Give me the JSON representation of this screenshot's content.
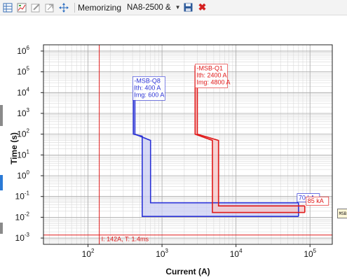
{
  "toolbar": {
    "memorizing_label": "Memorizing",
    "selected_device": "NA8-2500 &",
    "icons": [
      "grid-icon",
      "chart-icon",
      "edit-icon",
      "expand-icon",
      "move-icon",
      "save-icon",
      "close-icon"
    ]
  },
  "colors": {
    "curve_blue": "#2b33d6",
    "curve_red": "#e01919",
    "fill_blue": "#c9cdf3",
    "fill_red": "#f6c7c7"
  },
  "tooltip_chip_text": "MSB",
  "chart_data": {
    "type": "line",
    "xscale": "log",
    "yscale": "log",
    "xlim": [
      25,
      200000
    ],
    "ylim": [
      0.0005,
      2000000
    ],
    "xlabel": "Current (A)",
    "ylabel": "Time (s)",
    "x_ticks": [
      {
        "value": 100,
        "base": "10",
        "exp": "2"
      },
      {
        "value": 1000,
        "base": "10",
        "exp": "3"
      },
      {
        "value": 10000,
        "base": "10",
        "exp": "4"
      },
      {
        "value": 100000,
        "base": "10",
        "exp": "5"
      }
    ],
    "y_ticks": [
      {
        "value": 0.001,
        "base": "10",
        "exp": "-3"
      },
      {
        "value": 0.01,
        "base": "10",
        "exp": "-2"
      },
      {
        "value": 0.1,
        "base": "10",
        "exp": "-1"
      },
      {
        "value": 1,
        "base": "10",
        "exp": "0"
      },
      {
        "value": 10,
        "base": "10",
        "exp": "1"
      },
      {
        "value": 100,
        "base": "10",
        "exp": "2"
      },
      {
        "value": 1000,
        "base": "10",
        "exp": "3"
      },
      {
        "value": 10000,
        "base": "10",
        "exp": "4"
      },
      {
        "value": 100000,
        "base": "10",
        "exp": "5"
      },
      {
        "value": 1000000,
        "base": "10",
        "exp": "6"
      }
    ],
    "grid": true,
    "series": [
      {
        "name": "MSB-Q8",
        "labels": [
          "-MSB-Q8",
          "Ith: 400 A",
          "Img: 600 A"
        ],
        "color": "#2b33d6",
        "upper": [
          [
            430,
            20000
          ],
          [
            430,
            100
          ],
          [
            700,
            50
          ],
          [
            700,
            0.05
          ],
          [
            70000,
            0.05
          ]
        ],
        "lower": [
          [
            410,
            20000
          ],
          [
            410,
            100
          ],
          [
            540,
            80
          ],
          [
            540,
            0.011
          ],
          [
            70000,
            0.011
          ]
        ],
        "breaking_label": "70 kA",
        "breaking_x": 70000
      },
      {
        "name": "MSB-Q1",
        "labels": [
          "-MSB-Q1",
          "Ith: 2400 A",
          "Img: 4800 A"
        ],
        "color": "#e01919",
        "upper": [
          [
            3000,
            200000
          ],
          [
            3000,
            100
          ],
          [
            5800,
            50
          ],
          [
            5800,
            0.035
          ],
          [
            85000,
            0.035
          ]
        ],
        "lower": [
          [
            2800,
            200000
          ],
          [
            2800,
            100
          ],
          [
            4800,
            50
          ],
          [
            4800,
            0.017
          ],
          [
            85000,
            0.017
          ]
        ],
        "breaking_label": "85 kA",
        "breaking_x": 85000
      }
    ],
    "cursor": {
      "current": 142,
      "time": 0.0014,
      "label": "I: 142A, T: 1.4ms"
    }
  }
}
